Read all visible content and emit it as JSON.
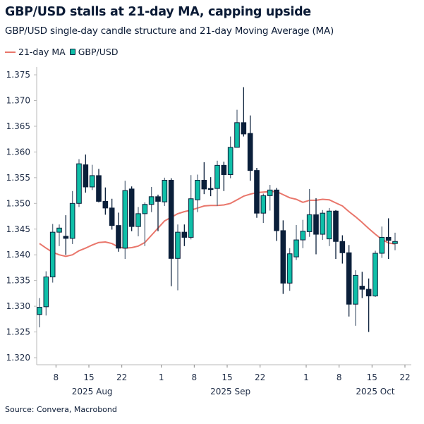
{
  "title": "GBP/USD stalls at 21-day MA, capping upside",
  "subtitle": "GBP/USD single-day candle structure and 21-day Moving Average (MA)",
  "source": "Source: Convera, Macrobond",
  "legend": {
    "ma_label": "21-day MA",
    "candle_label": "GBP/USD"
  },
  "colors": {
    "up": "#0fbfa8",
    "down": "#0a1f3a",
    "ma": "#e9766b",
    "wick": "#5f6f82",
    "axis": "#b8b8b8"
  },
  "chart_data": {
    "type": "candlestick",
    "title": "GBP/USD stalls at 21-day MA, capping upside",
    "ylim": [
      1.32,
      1.375
    ],
    "yticks": [
      "1.320",
      "1.325",
      "1.330",
      "1.335",
      "1.340",
      "1.345",
      "1.350",
      "1.355",
      "1.360",
      "1.365",
      "1.370",
      "1.375"
    ],
    "xticks": [
      {
        "label": "8",
        "date": "2025-08-08"
      },
      {
        "label": "15",
        "date": "2025-08-15"
      },
      {
        "label": "22",
        "date": "2025-08-22"
      },
      {
        "label": "1",
        "date": "2025-09-01"
      },
      {
        "label": "8",
        "date": "2025-09-08"
      },
      {
        "label": "15",
        "date": "2025-09-15"
      },
      {
        "label": "22",
        "date": "2025-09-22"
      },
      {
        "label": "1",
        "date": "2025-10-01"
      },
      {
        "label": "8",
        "date": "2025-10-08"
      },
      {
        "label": "15",
        "date": "2025-10-15"
      },
      {
        "label": "22",
        "date": "2025-10-22"
      }
    ],
    "months": [
      {
        "label": "2025 Aug",
        "date": "2025-08-15"
      },
      {
        "label": "2025 Sep",
        "date": "2025-09-15"
      },
      {
        "label": "2025 Oct",
        "date": "2025-10-15"
      }
    ],
    "grid": false,
    "legend_position": "top-left",
    "series": [
      {
        "name": "GBP/USD",
        "type": "candlestick",
        "candles": [
          {
            "date": "2025-08-05",
            "o": 1.3284,
            "h": 1.3316,
            "l": 1.3259,
            "c": 1.3298
          },
          {
            "date": "2025-08-06",
            "o": 1.3299,
            "h": 1.3368,
            "l": 1.3282,
            "c": 1.3357
          },
          {
            "date": "2025-08-07",
            "o": 1.3357,
            "h": 1.346,
            "l": 1.3346,
            "c": 1.3444
          },
          {
            "date": "2025-08-08",
            "o": 1.3444,
            "h": 1.3459,
            "l": 1.3417,
            "c": 1.3452
          },
          {
            "date": "2025-08-11",
            "o": 1.3436,
            "h": 1.3477,
            "l": 1.34,
            "c": 1.3432
          },
          {
            "date": "2025-08-12",
            "o": 1.3432,
            "h": 1.3524,
            "l": 1.3421,
            "c": 1.35
          },
          {
            "date": "2025-08-13",
            "o": 1.35,
            "h": 1.3586,
            "l": 1.3493,
            "c": 1.3577
          },
          {
            "date": "2025-08-14",
            "o": 1.3575,
            "h": 1.3595,
            "l": 1.3521,
            "c": 1.3532
          },
          {
            "date": "2025-08-15",
            "o": 1.3532,
            "h": 1.3575,
            "l": 1.3526,
            "c": 1.3554
          },
          {
            "date": "2025-08-18",
            "o": 1.3554,
            "h": 1.3567,
            "l": 1.3502,
            "c": 1.3504
          },
          {
            "date": "2025-08-19",
            "o": 1.3504,
            "h": 1.3531,
            "l": 1.3478,
            "c": 1.3491
          },
          {
            "date": "2025-08-20",
            "o": 1.3491,
            "h": 1.3509,
            "l": 1.3449,
            "c": 1.3457
          },
          {
            "date": "2025-08-21",
            "o": 1.3457,
            "h": 1.3482,
            "l": 1.3406,
            "c": 1.3413
          },
          {
            "date": "2025-08-22",
            "o": 1.3413,
            "h": 1.3544,
            "l": 1.3392,
            "c": 1.3525
          },
          {
            "date": "2025-08-25",
            "o": 1.3528,
            "h": 1.3533,
            "l": 1.3446,
            "c": 1.3455
          },
          {
            "date": "2025-08-26",
            "o": 1.3455,
            "h": 1.3493,
            "l": 1.3436,
            "c": 1.348
          },
          {
            "date": "2025-08-27",
            "o": 1.348,
            "h": 1.3502,
            "l": 1.3417,
            "c": 1.3498
          },
          {
            "date": "2025-08-28",
            "o": 1.3498,
            "h": 1.3532,
            "l": 1.3483,
            "c": 1.3513
          },
          {
            "date": "2025-08-29",
            "o": 1.3513,
            "h": 1.3517,
            "l": 1.3446,
            "c": 1.3504
          },
          {
            "date": "2025-09-01",
            "o": 1.3503,
            "h": 1.355,
            "l": 1.3495,
            "c": 1.3545
          },
          {
            "date": "2025-09-02",
            "o": 1.3545,
            "h": 1.3549,
            "l": 1.3339,
            "c": 1.3393
          },
          {
            "date": "2025-09-03",
            "o": 1.3393,
            "h": 1.3459,
            "l": 1.3331,
            "c": 1.3444
          },
          {
            "date": "2025-09-04",
            "o": 1.3444,
            "h": 1.3459,
            "l": 1.3417,
            "c": 1.3434
          },
          {
            "date": "2025-09-05",
            "o": 1.3434,
            "h": 1.3555,
            "l": 1.343,
            "c": 1.3509
          },
          {
            "date": "2025-09-08",
            "o": 1.3507,
            "h": 1.3556,
            "l": 1.3483,
            "c": 1.3545
          },
          {
            "date": "2025-09-09",
            "o": 1.3545,
            "h": 1.358,
            "l": 1.3518,
            "c": 1.3528
          },
          {
            "date": "2025-09-10",
            "o": 1.3529,
            "h": 1.3551,
            "l": 1.3514,
            "c": 1.3528
          },
          {
            "date": "2025-09-11",
            "o": 1.3529,
            "h": 1.3583,
            "l": 1.3495,
            "c": 1.3574
          },
          {
            "date": "2025-09-12",
            "o": 1.3574,
            "h": 1.3581,
            "l": 1.3524,
            "c": 1.3556
          },
          {
            "date": "2025-09-15",
            "o": 1.3556,
            "h": 1.363,
            "l": 1.3549,
            "c": 1.3609
          },
          {
            "date": "2025-09-16",
            "o": 1.3609,
            "h": 1.3682,
            "l": 1.3609,
            "c": 1.3657
          },
          {
            "date": "2025-09-17",
            "o": 1.3657,
            "h": 1.3726,
            "l": 1.363,
            "c": 1.3635
          },
          {
            "date": "2025-09-18",
            "o": 1.3636,
            "h": 1.3671,
            "l": 1.3544,
            "c": 1.3564
          },
          {
            "date": "2025-09-19",
            "o": 1.3564,
            "h": 1.3569,
            "l": 1.3472,
            "c": 1.3481
          },
          {
            "date": "2025-09-22",
            "o": 1.3481,
            "h": 1.3519,
            "l": 1.3462,
            "c": 1.3515
          },
          {
            "date": "2025-09-23",
            "o": 1.3515,
            "h": 1.3536,
            "l": 1.3486,
            "c": 1.3526
          },
          {
            "date": "2025-09-24",
            "o": 1.3526,
            "h": 1.353,
            "l": 1.3427,
            "c": 1.3447
          },
          {
            "date": "2025-09-25",
            "o": 1.3447,
            "h": 1.3467,
            "l": 1.3324,
            "c": 1.3345
          },
          {
            "date": "2025-09-26",
            "o": 1.3345,
            "h": 1.3413,
            "l": 1.333,
            "c": 1.3402
          },
          {
            "date": "2025-09-29",
            "o": 1.3396,
            "h": 1.3458,
            "l": 1.339,
            "c": 1.3429
          },
          {
            "date": "2025-09-30",
            "o": 1.3429,
            "h": 1.3468,
            "l": 1.3413,
            "c": 1.3446
          },
          {
            "date": "2025-10-01",
            "o": 1.3445,
            "h": 1.3528,
            "l": 1.3435,
            "c": 1.3478
          },
          {
            "date": "2025-10-02",
            "o": 1.3478,
            "h": 1.351,
            "l": 1.3401,
            "c": 1.344
          },
          {
            "date": "2025-10-03",
            "o": 1.344,
            "h": 1.3487,
            "l": 1.3429,
            "c": 1.3481
          },
          {
            "date": "2025-10-06",
            "o": 1.3431,
            "h": 1.3491,
            "l": 1.3417,
            "c": 1.3485
          },
          {
            "date": "2025-10-07",
            "o": 1.3485,
            "h": 1.3487,
            "l": 1.3392,
            "c": 1.3426
          },
          {
            "date": "2025-10-08",
            "o": 1.3426,
            "h": 1.3438,
            "l": 1.3383,
            "c": 1.3404
          },
          {
            "date": "2025-10-09",
            "o": 1.3404,
            "h": 1.3419,
            "l": 1.328,
            "c": 1.3304
          },
          {
            "date": "2025-10-10",
            "o": 1.3304,
            "h": 1.337,
            "l": 1.3262,
            "c": 1.336
          },
          {
            "date": "2025-10-13",
            "o": 1.3339,
            "h": 1.3367,
            "l": 1.3316,
            "c": 1.3333
          },
          {
            "date": "2025-10-14",
            "o": 1.3333,
            "h": 1.3354,
            "l": 1.325,
            "c": 1.332
          },
          {
            "date": "2025-10-15",
            "o": 1.332,
            "h": 1.3408,
            "l": 1.3318,
            "c": 1.3403
          },
          {
            "date": "2025-10-16",
            "o": 1.3403,
            "h": 1.3455,
            "l": 1.3394,
            "c": 1.3434
          },
          {
            "date": "2025-10-17",
            "o": 1.3434,
            "h": 1.3471,
            "l": 1.3392,
            "c": 1.3428
          },
          {
            "date": "2025-10-20",
            "o": 1.3422,
            "h": 1.3443,
            "l": 1.3409,
            "c": 1.3426
          }
        ]
      },
      {
        "name": "21-day MA",
        "type": "line",
        "values": [
          1.3422,
          1.3413,
          1.3405,
          1.34,
          1.3397,
          1.34,
          1.3408,
          1.3413,
          1.3419,
          1.3424,
          1.3425,
          1.3422,
          1.3415,
          1.3413,
          1.3414,
          1.3417,
          1.3424,
          1.3438,
          1.3452,
          1.3466,
          1.3473,
          1.348,
          1.3484,
          1.3487,
          1.3491,
          1.3495,
          1.3496,
          1.3496,
          1.3497,
          1.35,
          1.3507,
          1.3514,
          1.3518,
          1.3521,
          1.3522,
          1.3523,
          1.3523,
          1.3517,
          1.3511,
          1.3508,
          1.3502,
          1.3506,
          1.3506,
          1.3508,
          1.3507,
          1.3501,
          1.3495,
          1.3484,
          1.3474,
          1.3463,
          1.3451,
          1.344,
          1.343,
          1.3423,
          1.3421
        ]
      }
    ]
  }
}
